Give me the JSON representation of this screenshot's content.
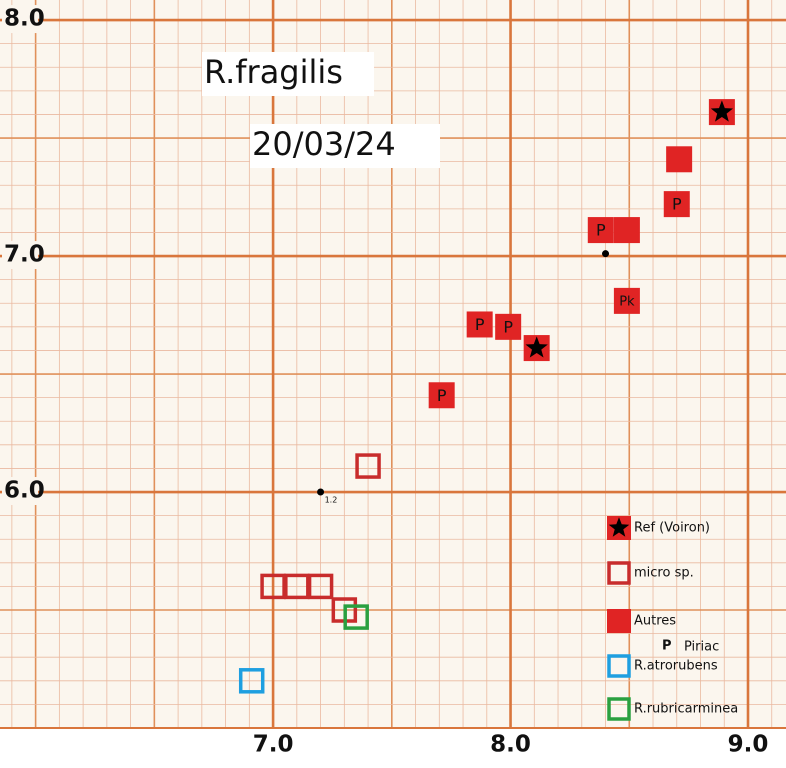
{
  "chart_data": {
    "type": "scatter",
    "title": "R.fragilis",
    "subtitle": "20/03/24",
    "xlim": [
      5.85,
      9.16
    ],
    "ylim": [
      5.0,
      8.085
    ],
    "xticks": [
      {
        "value": 7.0,
        "label": "7.0"
      },
      {
        "value": 8.0,
        "label": "8.0"
      },
      {
        "value": 9.0,
        "label": "9.0"
      }
    ],
    "yticks": [
      {
        "value": 6.0,
        "label": "6.0"
      },
      {
        "value": 7.0,
        "label": "7.0"
      },
      {
        "value": 8.0,
        "label": "8.0"
      }
    ],
    "grid": true,
    "legend": "lower right",
    "series": [
      {
        "name": "Ref (Voiron)",
        "color": "#e02424",
        "marker": "star-square",
        "x": [
          8.89,
          8.11
        ],
        "values": [
          7.61,
          6.61
        ]
      },
      {
        "name": "micro sp.",
        "color": "#c82c2c",
        "marker": "open-square",
        "x": [
          7.4,
          7.0,
          7.1,
          7.2,
          7.3
        ],
        "values": [
          6.11,
          5.6,
          5.6,
          5.6,
          5.5
        ]
      },
      {
        "name": "Autres",
        "color": "#e02424",
        "marker": "square",
        "x": [
          8.71,
          8.38,
          8.49,
          8.7,
          8.49,
          7.87,
          7.99,
          7.71
        ],
        "values": [
          7.41,
          7.11,
          7.11,
          7.22,
          6.81,
          6.71,
          6.7,
          6.41
        ],
        "labels": [
          null,
          "P",
          null,
          "P",
          "Pk",
          "P",
          "P",
          "P"
        ]
      },
      {
        "name": "R.atrorubens",
        "color": "#1e9fe0",
        "marker": "open-square",
        "x": [
          6.91
        ],
        "values": [
          5.2
        ]
      },
      {
        "name": "R.rubricarminea",
        "color": "#2aa040",
        "marker": "open-square",
        "x": [
          7.35
        ],
        "values": [
          5.47
        ]
      }
    ],
    "legend_note": {
      "symbol": "P",
      "text": "Piriac"
    },
    "points": {
      "x": [
        8.4,
        7.2
      ],
      "values": [
        7.01,
        6.0
      ],
      "labels": [
        null,
        "1.2"
      ]
    }
  }
}
